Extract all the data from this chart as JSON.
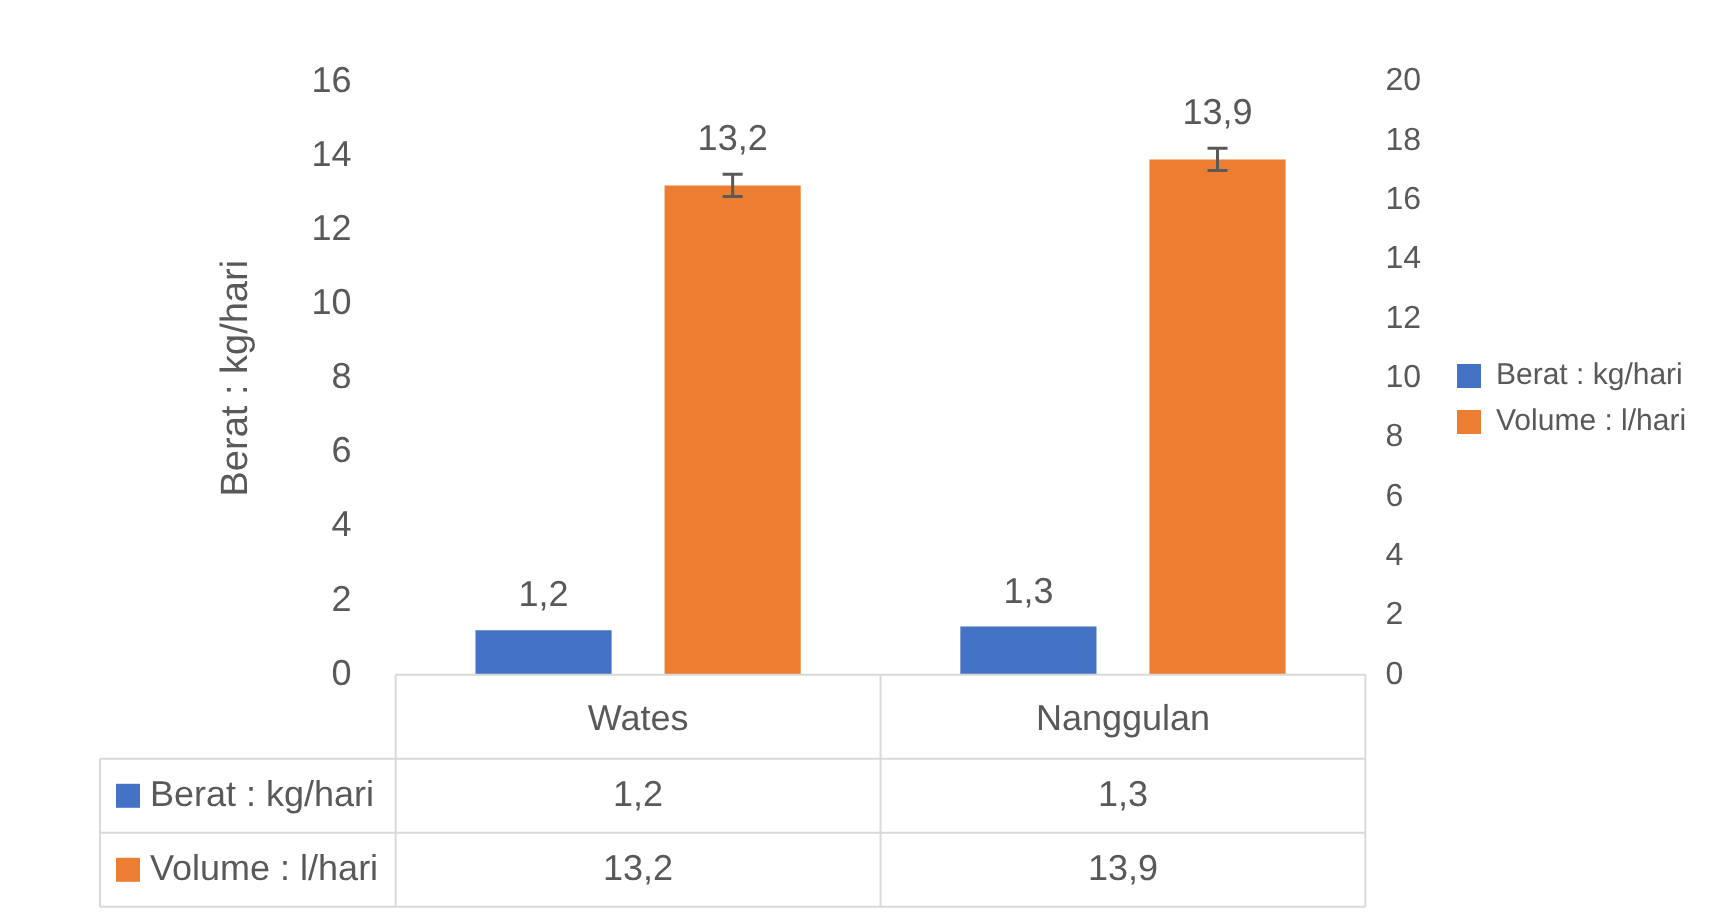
{
  "chart_data": {
    "type": "bar",
    "ylabel": "Berat : kg/hari",
    "categories": [
      "Wates",
      "Nanggulan"
    ],
    "series": [
      {
        "name": "Berat : kg/hari",
        "color": "#4472c4",
        "values": [
          1.2,
          1.3
        ],
        "value_labels": [
          "1,2",
          "1,3"
        ]
      },
      {
        "name": "Volume : l/hari",
        "color": "#ed7d31",
        "values": [
          13.2,
          13.9
        ],
        "value_labels": [
          "13,2",
          "13,9"
        ],
        "errors": [
          0.3,
          0.3
        ]
      }
    ],
    "ylim": [
      0,
      16
    ],
    "yticks": [
      0,
      2,
      4,
      6,
      8,
      10,
      12,
      14,
      16
    ],
    "y2lim": [
      0,
      20
    ],
    "y2ticks": [
      0,
      2,
      4,
      6,
      8,
      10,
      12,
      14,
      16,
      18,
      20
    ],
    "grid": false,
    "legend": "right"
  }
}
